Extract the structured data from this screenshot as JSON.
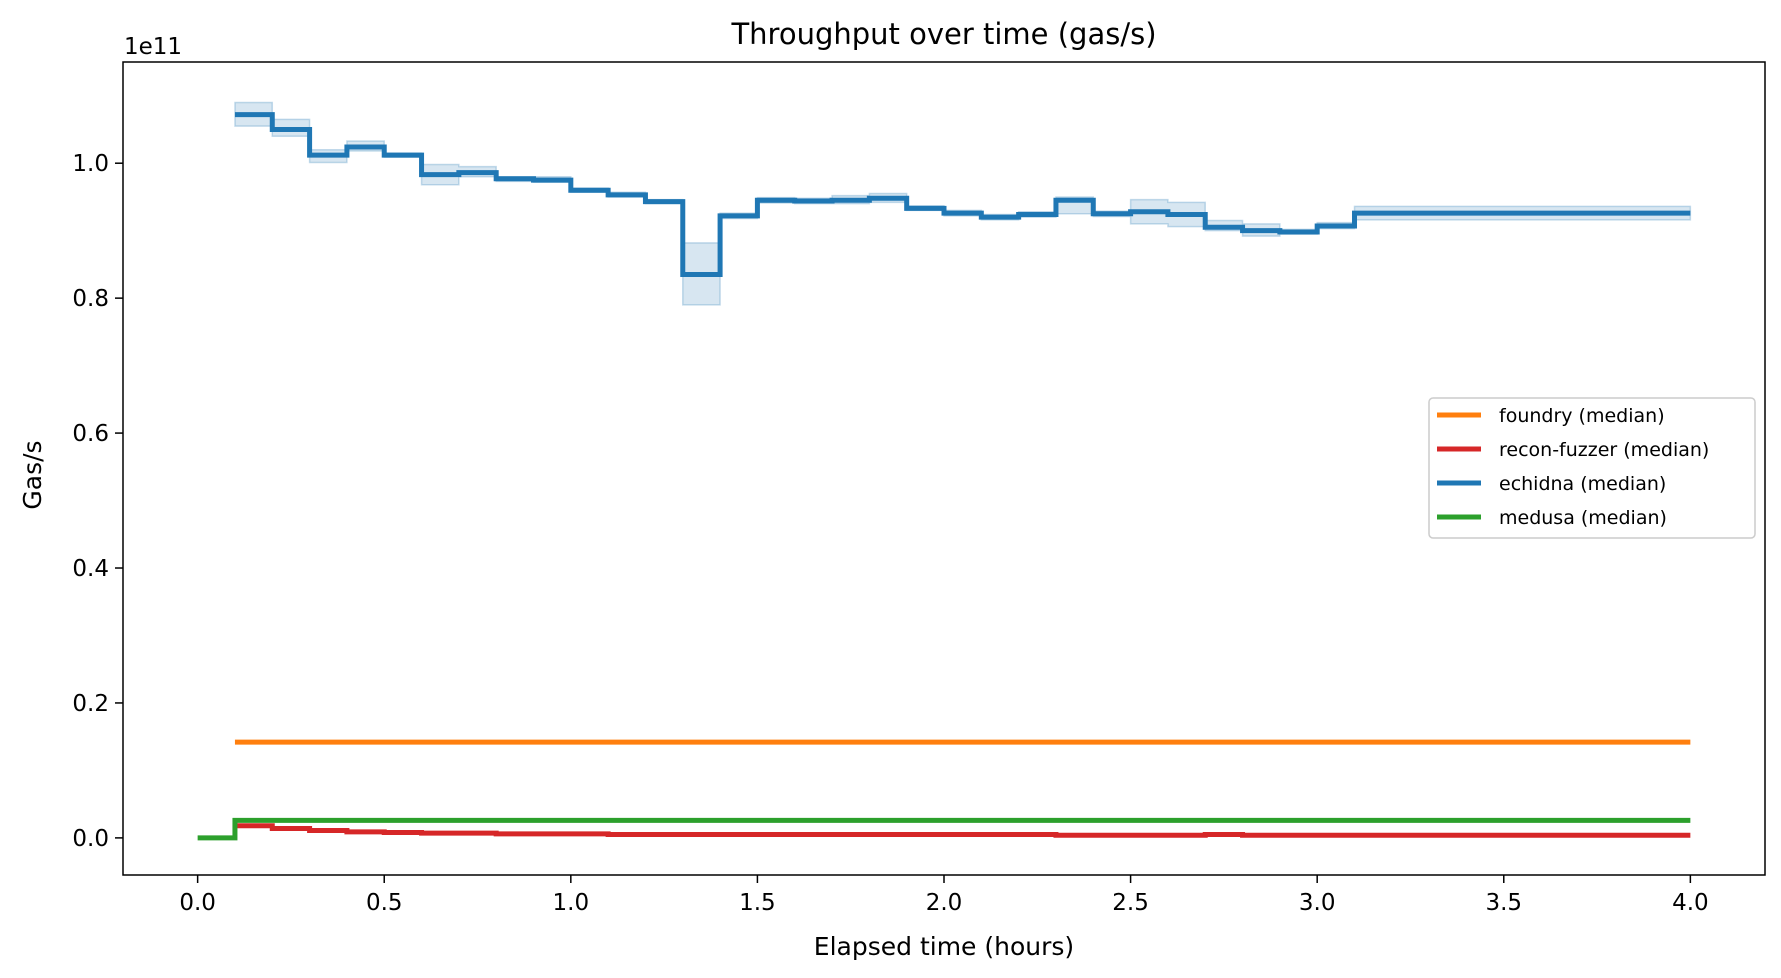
{
  "chart_data": {
    "type": "line",
    "title": "Throughput over time (gas/s)",
    "xlabel": "Elapsed time (hours)",
    "ylabel": "Gas/s",
    "y_offset_label": "1e11",
    "xlim": [
      -0.2,
      4.2
    ],
    "ylim": [
      -0.055,
      1.15
    ],
    "y_unit_scale": 100000000000.0,
    "x_ticks": [
      0.0,
      0.5,
      1.0,
      1.5,
      2.0,
      2.5,
      3.0,
      3.5,
      4.0
    ],
    "x_tick_labels": [
      "0.0",
      "0.5",
      "1.0",
      "1.5",
      "2.0",
      "2.5",
      "3.0",
      "3.5",
      "4.0"
    ],
    "y_ticks": [
      0.0,
      0.2,
      0.4,
      0.6,
      0.8,
      1.0
    ],
    "y_tick_labels": [
      "0.0",
      "0.2",
      "0.4",
      "0.6",
      "0.8",
      "1.0"
    ],
    "grid": false,
    "legend_position": "center-right",
    "step": true,
    "series": [
      {
        "name": "foundry (median)",
        "color": "#ff7f0e",
        "x": [
          0.1,
          4.0
        ],
        "y": [
          0.142,
          0.142
        ]
      },
      {
        "name": "recon-fuzzer (median)",
        "color": "#d62728",
        "x": [
          0.1,
          0.2,
          0.3,
          0.4,
          0.5,
          0.6,
          0.8,
          1.1,
          2.3,
          2.7,
          2.8,
          4.0
        ],
        "y": [
          0.018,
          0.014,
          0.011,
          0.009,
          0.008,
          0.007,
          0.006,
          0.005,
          0.004,
          0.005,
          0.004,
          0.004
        ]
      },
      {
        "name": "echidna (median)",
        "color": "#1f77b4",
        "band_color": "#1f77b4",
        "x": [
          0.1,
          0.2,
          0.3,
          0.4,
          0.5,
          0.6,
          0.7,
          0.8,
          0.9,
          1.0,
          1.1,
          1.2,
          1.3,
          1.4,
          1.5,
          1.6,
          1.7,
          1.8,
          1.9,
          2.0,
          2.1,
          2.2,
          2.3,
          2.4,
          2.5,
          2.6,
          2.7,
          2.8,
          2.9,
          3.0,
          3.1,
          3.2,
          4.0
        ],
        "y": [
          1.072,
          1.05,
          1.012,
          1.024,
          1.012,
          0.983,
          0.986,
          0.977,
          0.975,
          0.96,
          0.953,
          0.943,
          0.835,
          0.922,
          0.945,
          0.944,
          0.945,
          0.948,
          0.933,
          0.926,
          0.92,
          0.924,
          0.945,
          0.925,
          0.928,
          0.924,
          0.905,
          0.9,
          0.898,
          0.907,
          0.926,
          0.926,
          0.926
        ],
        "y_low": [
          1.055,
          1.04,
          1.001,
          1.018,
          1.009,
          0.968,
          0.98,
          0.973,
          0.972,
          0.957,
          0.95,
          0.94,
          0.79,
          0.918,
          0.941,
          0.94,
          0.94,
          0.942,
          0.93,
          0.922,
          0.916,
          0.92,
          0.925,
          0.921,
          0.91,
          0.906,
          0.9,
          0.892,
          0.895,
          0.903,
          0.916,
          0.916,
          0.916
        ],
        "y_high": [
          1.09,
          1.065,
          1.02,
          1.033,
          1.015,
          0.998,
          0.995,
          0.98,
          0.98,
          0.963,
          0.957,
          0.946,
          0.882,
          0.926,
          0.949,
          0.948,
          0.952,
          0.955,
          0.937,
          0.93,
          0.924,
          0.928,
          0.95,
          0.929,
          0.946,
          0.942,
          0.915,
          0.91,
          0.902,
          0.912,
          0.936,
          0.936,
          0.936
        ]
      },
      {
        "name": "medusa (median)",
        "color": "#2ca02c",
        "x": [
          0.0,
          0.1,
          4.0
        ],
        "y": [
          0.0,
          0.026,
          0.026
        ]
      }
    ],
    "legend_order": [
      0,
      1,
      2,
      3
    ],
    "draw_order": [
      0,
      1,
      3,
      2
    ]
  }
}
